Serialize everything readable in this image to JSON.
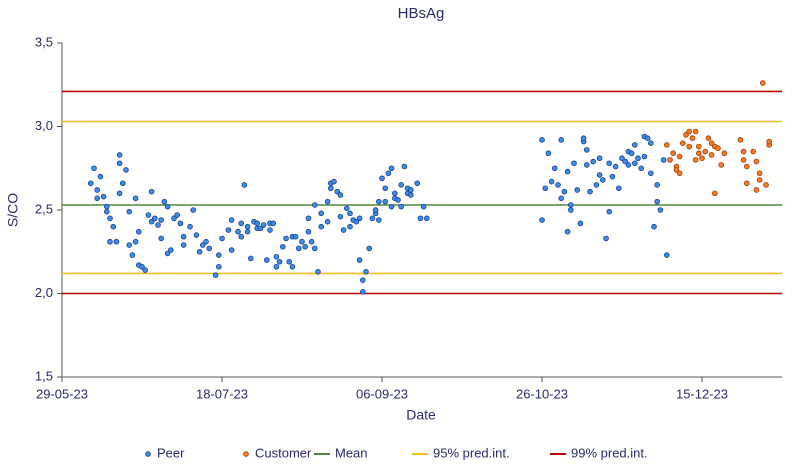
{
  "chart_data": {
    "type": "scatter",
    "title": "HBsAg",
    "x_label": "Date",
    "y_label": "S/CO",
    "xlim": [
      "2023-05-29",
      "2024-01-09"
    ],
    "xticks": [
      {
        "value": "2023-05-29",
        "label": "29-05-23"
      },
      {
        "value": "2023-07-18",
        "label": "18-07-23"
      },
      {
        "value": "2023-09-06",
        "label": "06-09-23"
      },
      {
        "value": "2023-10-26",
        "label": "26-10-23"
      },
      {
        "value": "2023-12-15",
        "label": "15-12-23"
      }
    ],
    "ylim": [
      1.5,
      3.5
    ],
    "yticks": [
      {
        "value": 1.5,
        "label": "1,5"
      },
      {
        "value": 2.0,
        "label": "2,0"
      },
      {
        "value": 2.5,
        "label": "2,5"
      },
      {
        "value": 3.0,
        "label": "3,0"
      },
      {
        "value": 3.5,
        "label": "3,5"
      }
    ],
    "grid": false,
    "series": [
      {
        "name": "Peer",
        "color": "#3b8de8",
        "edge": "#1b3f8f",
        "x": [
          "2023-06-07",
          "2023-06-08",
          "2023-06-09",
          "2023-06-09",
          "2023-06-10",
          "2023-06-11",
          "2023-06-12",
          "2023-06-12",
          "2023-06-13",
          "2023-06-13",
          "2023-06-14",
          "2023-06-15",
          "2023-06-16",
          "2023-06-16",
          "2023-06-16",
          "2023-06-17",
          "2023-06-18",
          "2023-06-19",
          "2023-06-19",
          "2023-06-20",
          "2023-06-21",
          "2023-06-21",
          "2023-06-22",
          "2023-06-22",
          "2023-06-23",
          "2023-06-24",
          "2023-06-25",
          "2023-06-26",
          "2023-06-26",
          "2023-06-27",
          "2023-06-28",
          "2023-06-29",
          "2023-06-29",
          "2023-06-30",
          "2023-07-01",
          "2023-07-01",
          "2023-07-02",
          "2023-07-03",
          "2023-07-04",
          "2023-07-05",
          "2023-07-06",
          "2023-07-06",
          "2023-07-08",
          "2023-07-09",
          "2023-07-10",
          "2023-07-11",
          "2023-07-12",
          "2023-07-13",
          "2023-07-14",
          "2023-07-16",
          "2023-07-17",
          "2023-07-17",
          "2023-07-18",
          "2023-07-20",
          "2023-07-21",
          "2023-07-21",
          "2023-07-23",
          "2023-07-24",
          "2023-07-24",
          "2023-07-25",
          "2023-07-26",
          "2023-07-26",
          "2023-07-27",
          "2023-07-28",
          "2023-07-29",
          "2023-07-29",
          "2023-07-30",
          "2023-07-31",
          "2023-08-01",
          "2023-08-02",
          "2023-08-02",
          "2023-08-03",
          "2023-08-04",
          "2023-08-04",
          "2023-08-05",
          "2023-08-06",
          "2023-08-07",
          "2023-08-08",
          "2023-08-09",
          "2023-08-09",
          "2023-08-10",
          "2023-08-11",
          "2023-08-12",
          "2023-08-13",
          "2023-08-14",
          "2023-08-14",
          "2023-08-15",
          "2023-08-16",
          "2023-08-16",
          "2023-08-17",
          "2023-08-18",
          "2023-08-18",
          "2023-08-20",
          "2023-08-20",
          "2023-08-21",
          "2023-08-21",
          "2023-08-22",
          "2023-08-23",
          "2023-08-24",
          "2023-08-24",
          "2023-08-25",
          "2023-08-26",
          "2023-08-27",
          "2023-08-27",
          "2023-08-28",
          "2023-08-29",
          "2023-08-30",
          "2023-08-30",
          "2023-08-31",
          "2023-08-31",
          "2023-09-01",
          "2023-09-02",
          "2023-09-03",
          "2023-09-04",
          "2023-09-04",
          "2023-09-05",
          "2023-09-05",
          "2023-09-06",
          "2023-09-07",
          "2023-09-07",
          "2023-09-08",
          "2023-09-09",
          "2023-09-09",
          "2023-09-10",
          "2023-09-10",
          "2023-09-11",
          "2023-09-12",
          "2023-09-12",
          "2023-09-13",
          "2023-09-14",
          "2023-09-14",
          "2023-09-15",
          "2023-09-15",
          "2023-09-17",
          "2023-09-18",
          "2023-09-19",
          "2023-09-20",
          "2023-10-26",
          "2023-10-26",
          "2023-10-27",
          "2023-10-28",
          "2023-10-29",
          "2023-10-30",
          "2023-10-31",
          "2023-11-01",
          "2023-11-01",
          "2023-11-02",
          "2023-11-03",
          "2023-11-03",
          "2023-11-04",
          "2023-11-04",
          "2023-11-05",
          "2023-11-06",
          "2023-11-07",
          "2023-11-08",
          "2023-11-08",
          "2023-11-09",
          "2023-11-09",
          "2023-11-10",
          "2023-11-11",
          "2023-11-12",
          "2023-11-13",
          "2023-11-13",
          "2023-11-14",
          "2023-11-15",
          "2023-11-16",
          "2023-11-16",
          "2023-11-17",
          "2023-11-18",
          "2023-11-19",
          "2023-11-20",
          "2023-11-21",
          "2023-11-22",
          "2023-11-22",
          "2023-11-23",
          "2023-11-24",
          "2023-11-24",
          "2023-11-25",
          "2023-11-26",
          "2023-11-27",
          "2023-11-27",
          "2023-11-28",
          "2023-11-29",
          "2023-11-29",
          "2023-11-30",
          "2023-12-01",
          "2023-12-01",
          "2023-12-02",
          "2023-12-03",
          "2023-12-04"
        ],
        "values": [
          2.66,
          2.75,
          2.62,
          2.57,
          2.7,
          2.58,
          2.52,
          2.49,
          2.45,
          2.31,
          2.4,
          2.31,
          2.83,
          2.6,
          2.78,
          2.66,
          2.74,
          2.49,
          2.29,
          2.23,
          2.57,
          2.31,
          2.37,
          2.17,
          2.16,
          2.14,
          2.47,
          2.43,
          2.61,
          2.45,
          2.41,
          2.44,
          2.33,
          2.55,
          2.24,
          2.52,
          2.26,
          2.45,
          2.47,
          2.42,
          2.34,
          2.29,
          2.4,
          2.5,
          2.35,
          2.25,
          2.29,
          2.31,
          2.27,
          2.11,
          2.16,
          2.23,
          2.33,
          2.38,
          2.44,
          2.26,
          2.37,
          2.42,
          2.34,
          2.65,
          2.4,
          2.37,
          2.21,
          2.43,
          2.39,
          2.42,
          2.39,
          2.41,
          2.2,
          2.38,
          2.42,
          2.42,
          2.22,
          2.16,
          2.19,
          2.28,
          2.33,
          2.19,
          2.16,
          2.34,
          2.34,
          2.27,
          2.31,
          2.28,
          2.37,
          2.45,
          2.31,
          2.53,
          2.27,
          2.13,
          2.4,
          2.48,
          2.43,
          2.55,
          2.63,
          2.66,
          2.67,
          2.61,
          2.59,
          2.46,
          2.38,
          2.51,
          2.48,
          2.4,
          2.44,
          2.43,
          2.45,
          2.2,
          2.08,
          2.01,
          2.13,
          2.27,
          2.45,
          2.48,
          2.5,
          2.44,
          2.55,
          2.69,
          2.55,
          2.63,
          2.72,
          2.75,
          2.52,
          2.57,
          2.6,
          2.56,
          2.52,
          2.65,
          2.76,
          2.6,
          2.63,
          2.59,
          2.62,
          2.66,
          2.45,
          2.52,
          2.45,
          2.92,
          2.44,
          2.63,
          2.84,
          2.67,
          2.75,
          2.65,
          2.92,
          2.57,
          2.61,
          2.37,
          2.73,
          2.53,
          2.5,
          2.78,
          2.62,
          2.42,
          2.91,
          2.93,
          2.86,
          2.77,
          2.61,
          2.79,
          2.65,
          2.81,
          2.71,
          2.68,
          2.33,
          2.49,
          2.78,
          2.7,
          2.76,
          2.63,
          2.81,
          2.79,
          2.85,
          2.77,
          2.84,
          2.89,
          2.78,
          2.81,
          2.75,
          2.82,
          2.94,
          2.93,
          2.9,
          2.72,
          2.4,
          2.65,
          2.55,
          2.5,
          2.8,
          2.23
        ]
      },
      {
        "name": "Customer",
        "color": "#f57a28",
        "edge": "#a33d00",
        "x": [
          "2023-12-04",
          "2023-12-05",
          "2023-12-06",
          "2023-12-07",
          "2023-12-07",
          "2023-12-08",
          "2023-12-08",
          "2023-12-09",
          "2023-12-10",
          "2023-12-11",
          "2023-12-11",
          "2023-12-12",
          "2023-12-13",
          "2023-12-13",
          "2023-12-14",
          "2023-12-14",
          "2023-12-15",
          "2023-12-16",
          "2023-12-17",
          "2023-12-18",
          "2023-12-18",
          "2023-12-19",
          "2023-12-19",
          "2023-12-20",
          "2023-12-21",
          "2023-12-22",
          "2023-12-27",
          "2023-12-28",
          "2023-12-28",
          "2023-12-29",
          "2023-12-29",
          "2023-12-31",
          "2024-01-01",
          "2024-01-01",
          "2024-01-02",
          "2024-01-02",
          "2024-01-03",
          "2024-01-04",
          "2024-01-05",
          "2024-01-05"
        ],
        "values": [
          2.89,
          2.8,
          2.84,
          2.76,
          2.74,
          2.82,
          2.72,
          2.9,
          2.95,
          2.97,
          2.88,
          2.93,
          2.8,
          2.97,
          2.84,
          2.88,
          2.81,
          2.85,
          2.93,
          2.83,
          2.9,
          2.88,
          2.6,
          2.87,
          2.77,
          2.84,
          2.92,
          2.85,
          2.8,
          2.76,
          2.66,
          2.85,
          2.79,
          2.62,
          2.72,
          2.68,
          3.26,
          2.65,
          2.89,
          2.91
        ]
      }
    ],
    "reference_lines": [
      {
        "name": "Mean",
        "color": "#4f8a3a",
        "values": [
          2.53
        ]
      },
      {
        "name": "95% pred.int.",
        "color": "#f5bd1f",
        "values": [
          2.12,
          3.03
        ]
      },
      {
        "name": "99% pred.int.",
        "color": "#c00000",
        "values": [
          2.0,
          3.21
        ]
      }
    ]
  }
}
